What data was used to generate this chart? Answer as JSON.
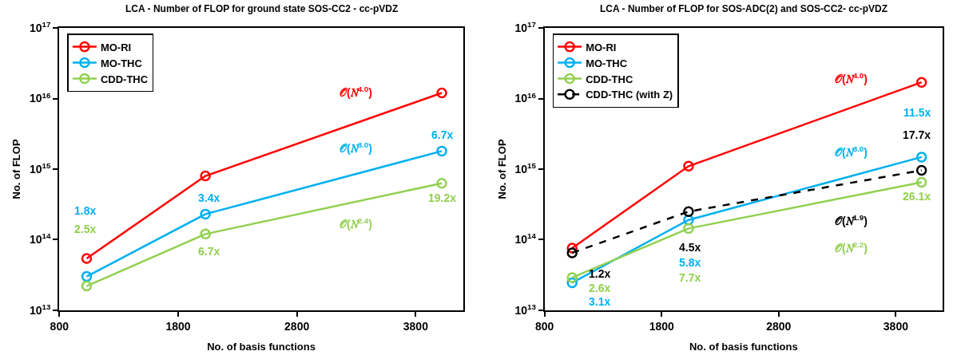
{
  "chart_data": [
    {
      "type": "line",
      "title": "LCA - Number of FLOP for ground state SOS-CC2 - cc-pVDZ",
      "xlabel": "No. of basis functions",
      "ylabel": "No. of FLOP",
      "x": [
        1030,
        2030,
        4020
      ],
      "series": [
        {
          "name": "MO-RI",
          "color": "#ff0000",
          "values": [
            54000000000000.0,
            800000000000000.0,
            1.2e+16
          ]
        },
        {
          "name": "MO-THC",
          "color": "#00b0f0",
          "values": [
            30000000000000.0,
            230000000000000.0,
            1800000000000000.0
          ]
        },
        {
          "name": "CDD-THC",
          "color": "#92d050",
          "values": [
            22000000000000.0,
            120000000000000.0,
            630000000000000.0
          ]
        }
      ],
      "annotations": [
        "1.8x",
        "2.5x",
        {
          "text": "3.4x",
          "x": 2030,
          "y": 230000000000000.0
        },
        {
          "text": "6.7x",
          "x": 2030,
          "y": 120000000000000.0
        },
        {
          "text": "6.7x",
          "x": 4020,
          "y": 1800000000000000.0
        },
        {
          "text": "19.2x",
          "x": 4020,
          "y": 630000000000000.0
        },
        "𝒪(𝑁$^{4.0}$)",
        "𝒪(𝑁$^{3.0}$)",
        "𝒪(𝑁$^{2.4}$)"
      ],
      "xlim": [
        800,
        4200
      ],
      "xticks": [
        800,
        1800,
        2800,
        3800
      ],
      "log": "y",
      "ylim": [
        10000000000000.0,
        1e+17
      ],
      "yticks": [
        {
          "value": 10000000000000.0,
          "label": "10$^{13}$"
        },
        {
          "value": 100000000000000.0,
          "label": "10$^{14}$"
        },
        {
          "value": 1000000000000000.0,
          "label": "10$^{15}$"
        },
        {
          "value": 1e+16,
          "label": "10$^{16}$"
        },
        {
          "value": 1e+17,
          "label": "10$^{17}$"
        }
      ],
      "legend": "top left",
      "marker": "circle",
      "line_style": "solid"
    },
    {
      "type": "line",
      "title": "LCA - Number of FLOP for SOS-ADC(2) and SOS-CC2- cc-pVDZ",
      "xlabel": "No. of basis functions",
      "ylabel": "No. of FLOP",
      "x": [
        1036,
        2030,
        4020
      ],
      "series": [
        {
          "name": "MO-RI",
          "color": "#ff0000",
          "values": [
            76000000000000.0,
            1100000000000000.0,
            1.7e+16
          ]
        },
        {
          "name": "MO-THC",
          "color": "#00b0f0",
          "values": [
            24500000000000.0,
            190000000000000.0,
            1480000000000000.0
          ]
        },
        {
          "name": "CDD-THC",
          "color": "#92d050",
          "values": [
            29000000000000.0,
            144000000000000.0,
            650000000000000.0
          ]
        },
        {
          "name": "CDD-THC (with Z)",
          "color": "#000000",
          "values": [
            65000000000000.0,
            250000000000000.0,
            960000000000000.0
          ],
          "line_style": "dashed"
        }
      ],
      "annotations": [
        "𝒪(𝑁$^{4.0}$)",
        "11.5x",
        {
          "text": "17.7x",
          "x": 4020,
          "y": 960000000000000.0
        },
        "𝒪(𝑁$^{3.0}$)",
        {
          "text": "26.1x",
          "x": 4020,
          "y": 650000000000000.0
        },
        "𝒪(𝑁$^{1.9}$)",
        "𝒪(𝑁$^{2.2}$)",
        {
          "text": "4.5x",
          "x": 2030,
          "y": 250000000000000.0
        },
        "5.8x",
        "7.7x",
        {
          "text": "1.2x",
          "x": 1036,
          "y": 65000000000000.0
        },
        {
          "text": "2.6x",
          "x": 1036,
          "y": 29000000000000.0
        },
        {
          "text": "3.1x",
          "x": 1036,
          "y": 24500000000000.0
        }
      ],
      "xlim": [
        800,
        4200
      ],
      "xticks": [
        800,
        1800,
        2800,
        3800
      ],
      "log": "y",
      "ylim": [
        10000000000000.0,
        1e+17
      ],
      "yticks": [
        {
          "value": 10000000000000.0,
          "label": "10$^{13}$"
        },
        {
          "value": 100000000000000.0,
          "label": "10$^{14}$"
        },
        {
          "value": 1000000000000000.0,
          "label": "10$^{15}$"
        },
        {
          "value": 1e+16,
          "label": "10$^{16}$"
        },
        {
          "value": 1e+17,
          "label": "10$^{17}$"
        }
      ],
      "legend": "top left",
      "marker": "circle",
      "line_style": "solid"
    }
  ]
}
